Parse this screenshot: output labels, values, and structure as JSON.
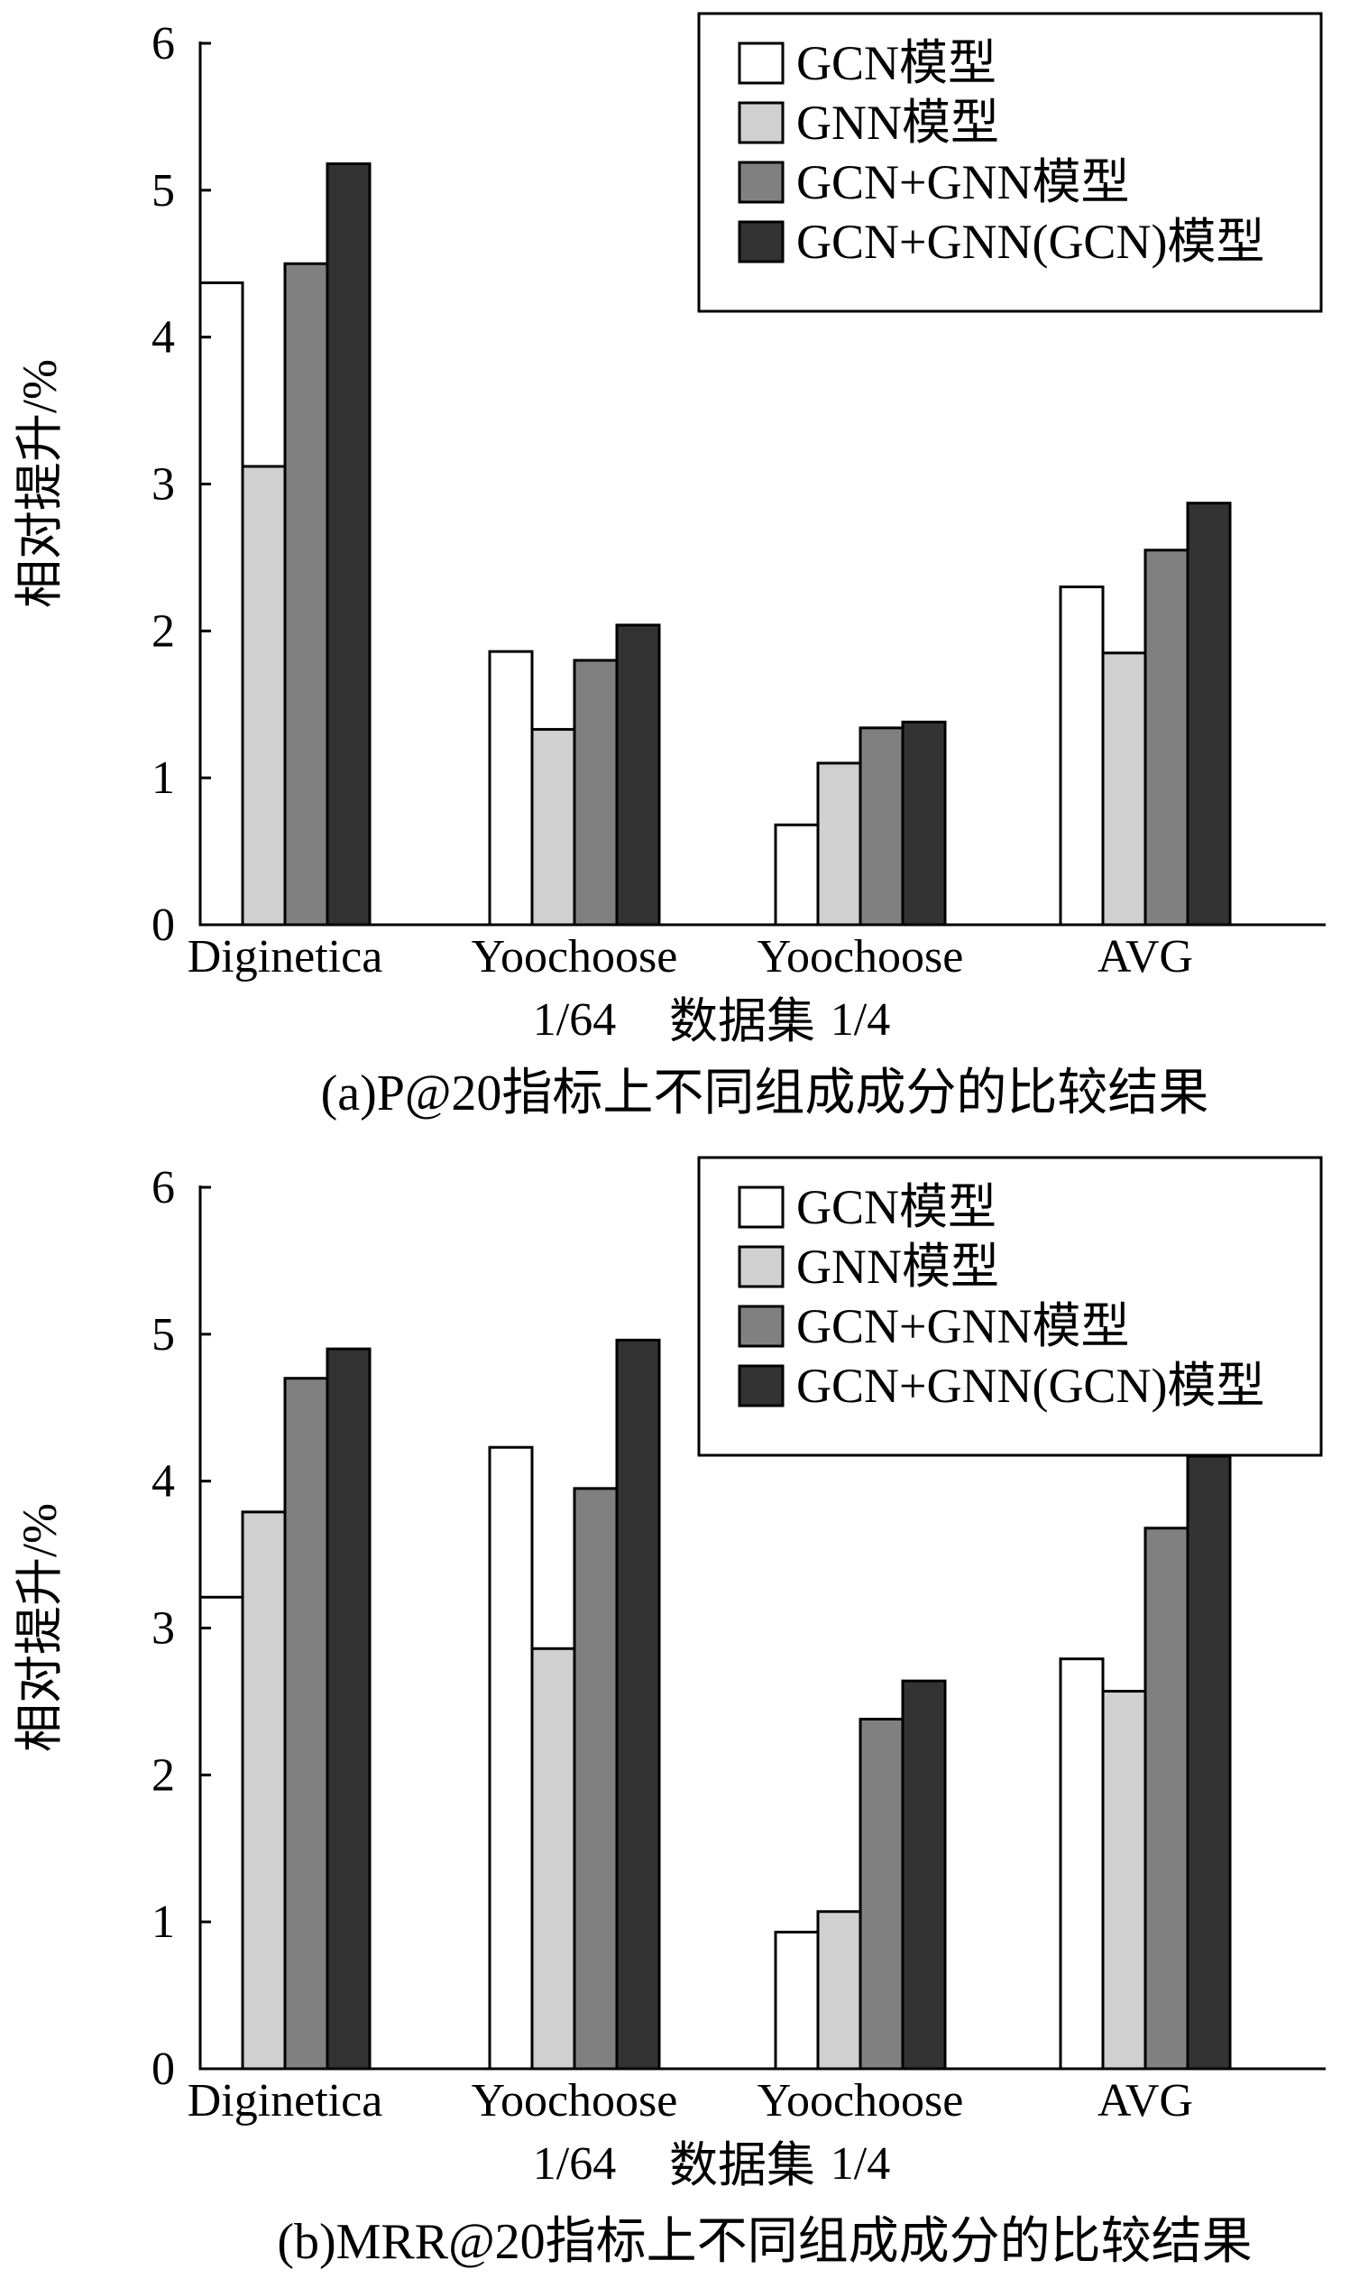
{
  "chart_data": [
    {
      "type": "bar",
      "title": "",
      "caption": "(a)P@20指标上不同组成成分的比较结果",
      "xlabel": "数据集",
      "ylabel": "相对提升/%",
      "ylim": [
        0,
        6
      ],
      "yticks": [
        "0",
        "1",
        "2",
        "3",
        "4",
        "5",
        "6"
      ],
      "categories": [
        [
          "Diginetica"
        ],
        [
          "Yoochoose",
          "1/64"
        ],
        [
          "Yoochoose",
          "1/4"
        ],
        [
          "AVG"
        ]
      ],
      "series": [
        {
          "name": "GCN模型",
          "color": "#ffffff",
          "values": [
            4.37,
            1.86,
            0.68,
            2.3
          ]
        },
        {
          "name": "GNN模型",
          "color": "#d0d0d0",
          "values": [
            3.12,
            1.33,
            1.1,
            1.85
          ]
        },
        {
          "name": "GCN+GNN模型",
          "color": "#808080",
          "values": [
            4.5,
            1.8,
            1.34,
            2.55
          ]
        },
        {
          "name": "GCN+GNN(GCN)模型",
          "color": "#333333",
          "values": [
            5.18,
            2.04,
            1.38,
            2.87
          ]
        }
      ],
      "legend_position": "top-right",
      "grid": false
    },
    {
      "type": "bar",
      "title": "",
      "caption": "(b)MRR@20指标上不同组成成分的比较结果",
      "xlabel": "数据集",
      "ylabel": "相对提升/%",
      "ylim": [
        0,
        6
      ],
      "yticks": [
        "0",
        "1",
        "2",
        "3",
        "4",
        "5",
        "6"
      ],
      "categories": [
        [
          "Diginetica"
        ],
        [
          "Yoochoose",
          "1/64"
        ],
        [
          "Yoochoose",
          "1/4"
        ],
        [
          "AVG"
        ]
      ],
      "series": [
        {
          "name": "GCN模型",
          "color": "#ffffff",
          "values": [
            3.21,
            4.23,
            0.93,
            2.79
          ]
        },
        {
          "name": "GNN模型",
          "color": "#d0d0d0",
          "values": [
            3.79,
            2.86,
            1.07,
            2.57
          ]
        },
        {
          "name": "GCN+GNN模型",
          "color": "#808080",
          "values": [
            4.7,
            3.95,
            2.38,
            3.68
          ]
        },
        {
          "name": "GCN+GNN(GCN)模型",
          "color": "#333333",
          "values": [
            4.9,
            4.96,
            2.64,
            4.17
          ]
        }
      ],
      "legend_position": "top-right",
      "grid": false
    }
  ]
}
